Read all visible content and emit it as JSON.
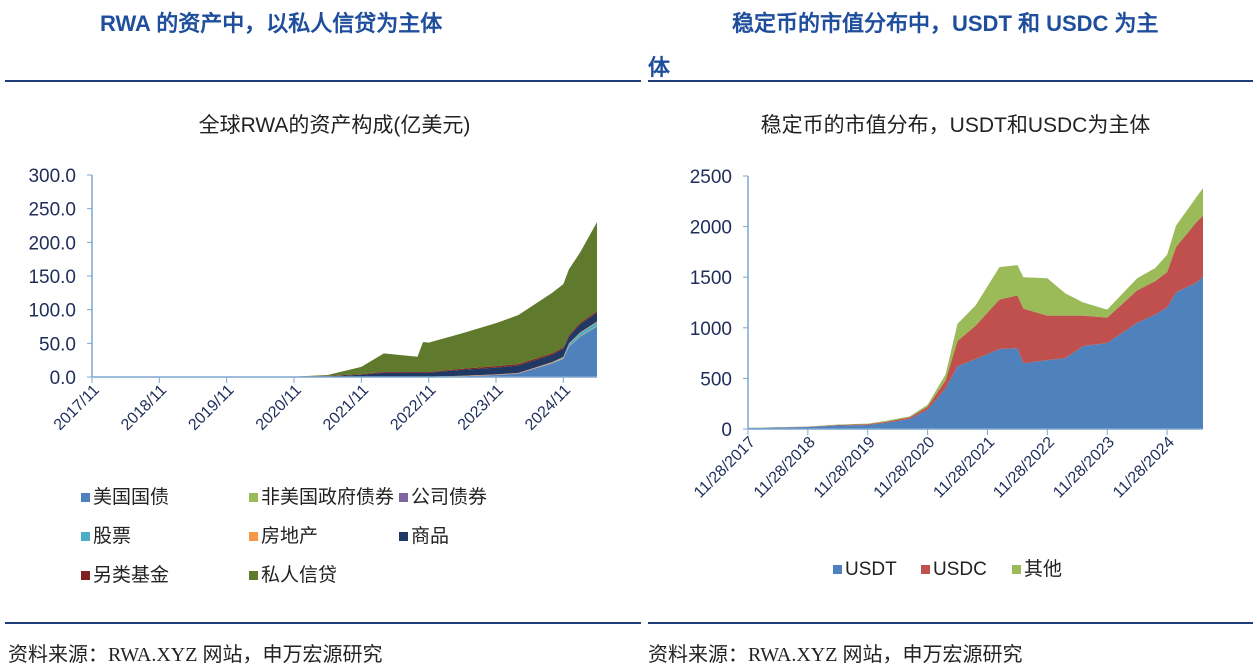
{
  "left": {
    "heading": "RWA 的资产中，以私人信贷为主体",
    "source": "资料来源：RWA.XYZ 网站，申万宏源研究"
  },
  "right": {
    "heading_line1": "稳定币的市值分布中，USDT 和 USDC 为主",
    "heading_line2": "体",
    "source": "资料来源：RWA.XYZ 网站，申万宏源研究"
  },
  "chart_data": [
    {
      "type": "area",
      "stacked": true,
      "title": "全球RWA的资产构成(亿美元)",
      "xlabel": "",
      "ylabel": "",
      "ylim": [
        0,
        300
      ],
      "yticks": [
        "0.0",
        "50.0",
        "100.0",
        "150.0",
        "200.0",
        "250.0",
        "300.0"
      ],
      "xticks": [
        "2017/11",
        "2018/11",
        "2019/11",
        "2020/11",
        "2021/11",
        "2022/11",
        "2023/11",
        "2024/11"
      ],
      "x_months_since_2017_11": [
        36,
        42,
        48,
        52,
        58,
        59,
        60,
        66,
        72,
        76,
        82,
        84,
        85,
        87,
        90
      ],
      "legend_position": "bottom",
      "series": [
        {
          "name": "美国国债",
          "color": "#4f81bd",
          "values": [
            0,
            0,
            0,
            0,
            0,
            0,
            0,
            1,
            3,
            5,
            20,
            27,
            45,
            60,
            75
          ]
        },
        {
          "name": "非美国政府债券",
          "color": "#9bbb59",
          "values": [
            0,
            0,
            0,
            0,
            0,
            0,
            0,
            0,
            0,
            0,
            0.3,
            0.5,
            0.5,
            0.8,
            1
          ]
        },
        {
          "name": "公司债券",
          "color": "#8064a2",
          "values": [
            0,
            0,
            0,
            0,
            0,
            0,
            0,
            0.2,
            0.2,
            0.3,
            0.4,
            0.4,
            0.5,
            0.5,
            0.5
          ]
        },
        {
          "name": "股票",
          "color": "#4bacc6",
          "values": [
            0,
            0,
            0,
            0,
            0,
            0,
            0,
            0,
            0,
            0,
            0.5,
            1,
            3,
            4,
            5
          ]
        },
        {
          "name": "房地产",
          "color": "#f79646",
          "values": [
            0.1,
            0.2,
            0.3,
            0.4,
            0.5,
            0.5,
            0.5,
            0.6,
            0.7,
            0.8,
            0.9,
            1,
            1,
            1,
            1
          ]
        },
        {
          "name": "商品",
          "color": "#1f3864",
          "values": [
            0,
            1,
            3,
            6,
            6,
            6,
            6,
            9,
            10,
            11,
            11,
            12,
            10,
            12,
            13
          ]
        },
        {
          "name": "另类基金",
          "color": "#7f1f1f",
          "values": [
            0.2,
            0.5,
            1,
            1,
            1,
            1,
            1,
            1.5,
            2,
            2,
            2,
            2,
            2,
            2,
            2
          ]
        },
        {
          "name": "私人信贷",
          "color": "#5f7a2c",
          "values": [
            0.2,
            1.3,
            10.7,
            27.6,
            22.5,
            44.5,
            43.5,
            52.7,
            64.1,
            72.9,
            89.9,
            94.1,
            98,
            104.7,
            132.5
          ]
        }
      ]
    },
    {
      "type": "area",
      "stacked": true,
      "title": "稳定币的市值分布，USDT和USDC为主体",
      "xlabel": "",
      "ylabel": "",
      "ylim": [
        0,
        2500
      ],
      "yticks": [
        "0",
        "500",
        "1000",
        "1500",
        "2000",
        "2500"
      ],
      "xticks": [
        "11/28/2017",
        "11/28/2018",
        "11/28/2019",
        "11/28/2020",
        "11/28/2021",
        "11/28/2022",
        "11/28/2023",
        "11/28/2024"
      ],
      "x_years_since_2017_11_28": [
        0,
        1,
        1.5,
        2,
        2.3,
        2.7,
        3.0,
        3.3,
        3.5,
        3.8,
        4.2,
        4.5,
        4.6,
        5.0,
        5.3,
        5.6,
        6.0,
        6.5,
        6.8,
        7.0,
        7.15,
        7.5,
        7.6
      ],
      "legend_position": "bottom",
      "series": [
        {
          "name": "USDT",
          "color": "#4f81bd",
          "values": [
            10,
            20,
            35,
            40,
            60,
            100,
            190,
            400,
            620,
            690,
            790,
            800,
            650,
            680,
            700,
            820,
            850,
            1050,
            1130,
            1200,
            1350,
            1450,
            1510
          ]
        },
        {
          "name": "USDC",
          "color": "#c0504d",
          "values": [
            0,
            2,
            5,
            8,
            10,
            15,
            30,
            80,
            250,
            330,
            490,
            520,
            540,
            440,
            420,
            300,
            250,
            320,
            330,
            350,
            450,
            600,
            600
          ]
        },
        {
          "name": "其他",
          "color": "#9bbb59",
          "values": [
            2,
            3,
            5,
            5,
            10,
            10,
            20,
            60,
            170,
            200,
            320,
            300,
            310,
            370,
            220,
            130,
            80,
            120,
            130,
            170,
            210,
            250,
            270
          ]
        }
      ]
    }
  ]
}
